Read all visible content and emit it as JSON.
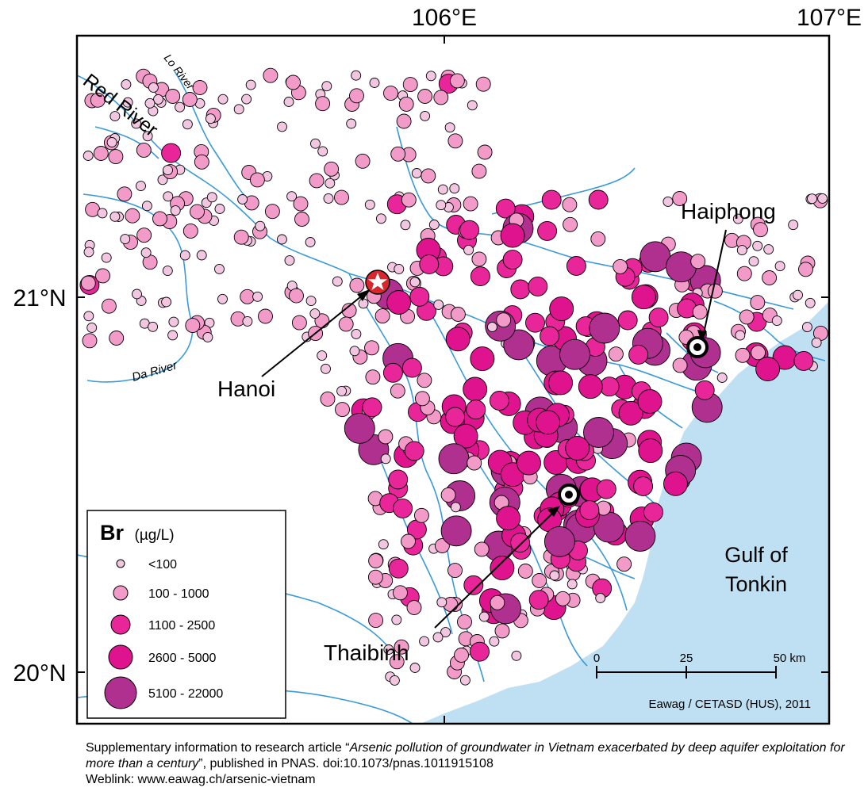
{
  "map": {
    "lon_labels": [
      "106°E",
      "107°E"
    ],
    "lat_labels": [
      "21°N",
      "20°N"
    ],
    "rivers": [
      "Red River",
      "Lo River",
      "Da River"
    ],
    "places": {
      "hanoi": "Hanoi",
      "haiphong": "Haiphong",
      "thaibinh": "Thaibinh",
      "gulf_line1": "Gulf of",
      "gulf_line2": "Tonkin"
    },
    "credit": "Eawag / CETASD (HUS), 2011",
    "scale_bar": {
      "ticks": [
        "0",
        "25",
        "50 km"
      ]
    },
    "colors": {
      "sea": "#bfe0f2",
      "river": "#3a9ad9",
      "hanoi_marker": "#d8262c"
    }
  },
  "legend": {
    "title_bold": "Br",
    "title_unit": "(µg/L)",
    "classes": [
      {
        "label": "<100",
        "color": "#f2c6e0"
      },
      {
        "label": "100 - 1000",
        "color": "#f29ac8"
      },
      {
        "label": "1100 - 2500",
        "color": "#e8269a"
      },
      {
        "label": "2600 - 5000",
        "color": "#e0138e"
      },
      {
        "label": "5100 - 22000",
        "color": "#b03090"
      }
    ]
  },
  "caption": {
    "pre": "Supplementary information to research article “",
    "title": "Arsenic pollution of groundwater in Vietnam exacerbated by deep aquifer exploitation for more than a century",
    "post": "”, published in PNAS. doi:10.1073/pnas.1011915108",
    "weblink": "Weblink: www.eawag.ch/arsenic-vietnam"
  }
}
